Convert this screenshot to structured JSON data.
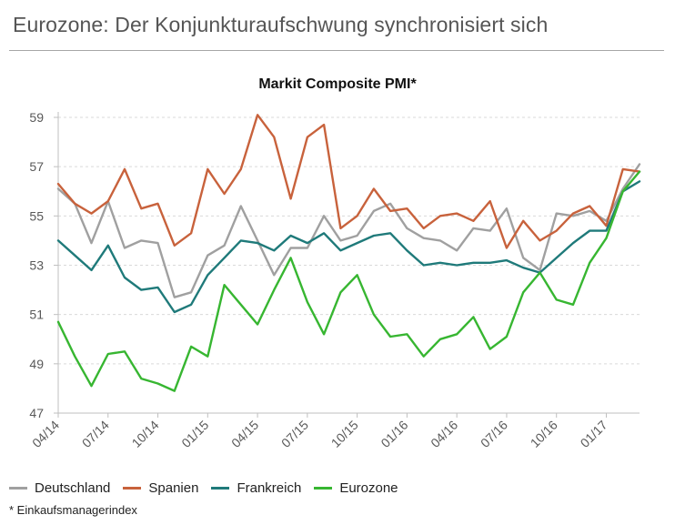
{
  "header": {
    "title": "Eurozone: Der Konjunkturaufschwung synchronisiert sich"
  },
  "footnote": "* Einkaufsmanagerindex",
  "colors": {
    "Deutschland": "#a0a0a0",
    "Spanien": "#c8623c",
    "Frankreich": "#1f7a7a",
    "Eurozone": "#37b631",
    "grid": "#d9d9d9",
    "axis_text": "#595959"
  },
  "chart_data": {
    "type": "line",
    "title": "Markit Composite PMI*",
    "xlabel": "",
    "ylabel": "",
    "ylim": [
      47,
      59
    ],
    "yticks": [
      47,
      49,
      51,
      53,
      55,
      57,
      59
    ],
    "grid": true,
    "legend_position": "bottom",
    "x": [
      "04/14",
      "05/14",
      "06/14",
      "07/14",
      "08/14",
      "09/14",
      "10/14",
      "11/14",
      "12/14",
      "01/15",
      "02/15",
      "03/15",
      "04/15",
      "05/15",
      "06/15",
      "07/15",
      "08/15",
      "09/15",
      "10/15",
      "11/15",
      "12/15",
      "01/16",
      "02/16",
      "03/16",
      "04/16",
      "05/16",
      "06/16",
      "07/16",
      "08/16",
      "09/16",
      "10/16",
      "11/16",
      "12/16",
      "01/17",
      "02/17",
      "03/17"
    ],
    "xtick_labels": [
      "04/14",
      "07/14",
      "10/14",
      "01/15",
      "04/15",
      "07/15",
      "10/15",
      "01/16",
      "04/16",
      "07/16",
      "10/16",
      "01/17"
    ],
    "series": [
      {
        "name": "Deutschland",
        "values": [
          56.1,
          55.5,
          53.9,
          55.6,
          53.7,
          54.0,
          53.9,
          51.7,
          51.9,
          53.4,
          53.8,
          55.4,
          54.0,
          52.6,
          53.7,
          53.7,
          55.0,
          54.0,
          54.2,
          55.2,
          55.5,
          54.5,
          54.1,
          54.0,
          53.6,
          54.5,
          54.4,
          55.3,
          53.3,
          52.8,
          55.1,
          55.0,
          55.2,
          54.8,
          56.1,
          57.1
        ]
      },
      {
        "name": "Spanien",
        "values": [
          56.3,
          55.5,
          55.1,
          55.6,
          56.9,
          55.3,
          55.5,
          53.8,
          54.3,
          56.9,
          55.9,
          56.9,
          59.1,
          58.2,
          55.7,
          58.2,
          58.7,
          54.5,
          55.0,
          56.1,
          55.2,
          55.3,
          54.5,
          55.0,
          55.1,
          54.8,
          55.6,
          53.7,
          54.8,
          54.0,
          54.4,
          55.1,
          55.4,
          54.6,
          56.9,
          56.8
        ]
      },
      {
        "name": "Frankreich",
        "values": [
          54.0,
          53.4,
          52.8,
          53.8,
          52.5,
          52.0,
          52.1,
          51.1,
          51.4,
          52.6,
          53.3,
          54.0,
          53.9,
          53.6,
          54.2,
          53.9,
          54.3,
          53.6,
          53.9,
          54.2,
          54.3,
          53.6,
          53.0,
          53.1,
          53.0,
          53.1,
          53.1,
          53.2,
          52.9,
          52.7,
          53.3,
          53.9,
          54.4,
          54.4,
          56.0,
          56.4
        ]
      },
      {
        "name": "Eurozone",
        "values": [
          50.7,
          49.3,
          48.1,
          49.4,
          49.5,
          48.4,
          48.2,
          47.9,
          49.7,
          49.3,
          52.2,
          51.4,
          50.6,
          52.0,
          53.3,
          51.5,
          50.2,
          51.9,
          52.6,
          51.0,
          50.1,
          50.2,
          49.3,
          50.0,
          50.2,
          50.9,
          49.6,
          50.1,
          51.9,
          52.7,
          51.6,
          51.4,
          53.1,
          54.1,
          56.0,
          56.8
        ]
      }
    ]
  }
}
